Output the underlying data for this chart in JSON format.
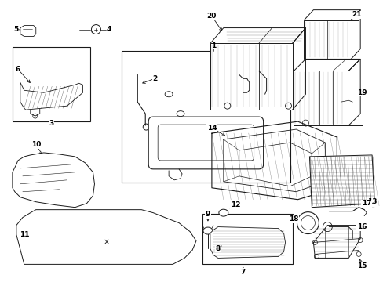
{
  "bg_color": "#ffffff",
  "line_color": "#1a1a1a",
  "text_color": "#000000",
  "figsize": [
    4.89,
    3.6
  ],
  "dpi": 100
}
